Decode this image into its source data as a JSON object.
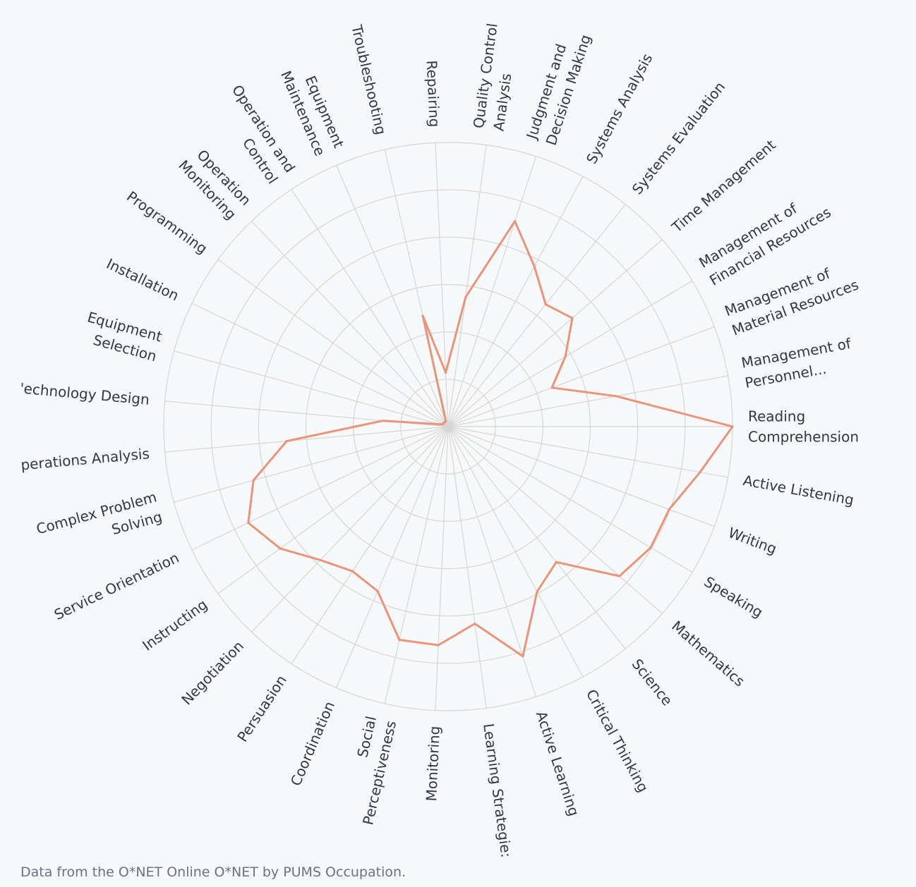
{
  "chart_data": {
    "type": "radar",
    "title": "",
    "categories": [
      "Reading Comprehension",
      "Active Listening",
      "Writing",
      "Speaking",
      "Mathematics",
      "Science",
      "Critical Thinking",
      "Active Learning",
      "Learning Strategies",
      "Monitoring",
      "Social Perceptiveness",
      "Coordination",
      "Persuasion",
      "Negotiation",
      "Instructing",
      "Service Orientation",
      "Complex Problem Solving",
      "Operations Analysis",
      "Technology Design",
      "Equipment Selection",
      "Installation",
      "Programming",
      "Operation Monitoring",
      "Operation and Control",
      "Equipment Maintenance",
      "Troubleshooting",
      "Repairing",
      "Quality Control Analysis",
      "Judgment and Decision Making",
      "Systems Analysis",
      "Systems Evaluation",
      "Time Management",
      "Management of Financial Resources",
      "Management of Material Resources",
      "Management of Personnel Resources"
    ],
    "series": [
      {
        "values": [
          1.0,
          0.9,
          0.83,
          0.83,
          0.8,
          0.61,
          0.66,
          0.85,
          0.7,
          0.77,
          0.77,
          0.63,
          0.61,
          0.65,
          0.73,
          0.78,
          0.71,
          0.57,
          0.23,
          0.03,
          0.02,
          0.02,
          0.02,
          0.02,
          0.02,
          0.4,
          0.19,
          0.46,
          0.76,
          0.64,
          0.55,
          0.58,
          0.48,
          0.39,
          0.6
        ]
      }
    ],
    "rlim": [
      0,
      1
    ],
    "line_color": "#e8957b",
    "grid": true,
    "legend": "none"
  },
  "labels": [
    [
      "Reading",
      "Comprehension"
    ],
    [
      "Active Listening"
    ],
    [
      "Writing"
    ],
    [
      "Speaking"
    ],
    [
      "Mathematics"
    ],
    [
      "Science"
    ],
    [
      "Critical Thinking"
    ],
    [
      "Active Learning"
    ],
    [
      "Learning Strategie:"
    ],
    [
      "Monitoring"
    ],
    [
      "Social",
      "Perceptiveness"
    ],
    [
      "Coordination"
    ],
    [
      "Persuasion"
    ],
    [
      "Negotiation"
    ],
    [
      "Instructing"
    ],
    [
      "Service Orientation"
    ],
    [
      "Complex Problem",
      "Solving"
    ],
    [
      "perations Analysis"
    ],
    [
      "'echnology Design"
    ],
    [
      "Equipment",
      "Selection"
    ],
    [
      "Installation"
    ],
    [
      "Programming"
    ],
    [
      "Operation",
      "Monitoring"
    ],
    [
      "Operation and",
      "Control"
    ],
    [
      "Equipment",
      "Maintenance"
    ],
    [
      "Troubleshooting"
    ],
    [
      "Repairing"
    ],
    [
      "Quality Control",
      "Analysis"
    ],
    [
      "Judgment and",
      "Decision Making"
    ],
    [
      "Systems Analysis"
    ],
    [
      "Systems Evaluation"
    ],
    [
      "Time Management"
    ],
    [
      "Management of",
      "Financial Resources"
    ],
    [
      "Management of",
      "Material Resources"
    ],
    [
      "Management of",
      "Personnel..."
    ]
  ],
  "footer": "Data from the O*NET Online O*NET by PUMS Occupation."
}
